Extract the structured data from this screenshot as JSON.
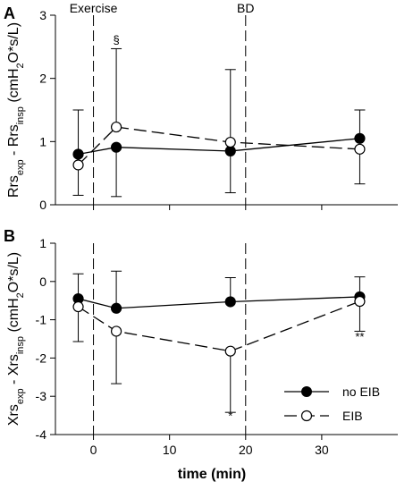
{
  "chart_data": {
    "type": "line",
    "xlabel": "time (min)",
    "xlim": [
      -5,
      40
    ],
    "xticks": [
      0,
      10,
      20,
      30
    ],
    "events": [
      {
        "x": 0,
        "label": "Exercise"
      },
      {
        "x": 20,
        "label": "BD"
      }
    ],
    "legend": {
      "placement": "bottom-right",
      "entries": [
        "no EIB",
        "EIB"
      ]
    },
    "panels": [
      {
        "letter": "A",
        "ylabel_parts": [
          {
            "t": "Rrs",
            "s": ""
          },
          {
            "t": "exp",
            "s": "sub"
          },
          {
            "t": " - Rrs",
            "s": ""
          },
          {
            "t": "insp",
            "s": "sub"
          },
          {
            "t": " (cmH",
            "s": ""
          },
          {
            "t": "2",
            "s": "sub"
          },
          {
            "t": "O*s/L)",
            "s": ""
          }
        ],
        "ylim": [
          0,
          3
        ],
        "yticks": [
          0,
          1,
          2,
          3
        ],
        "series": [
          {
            "name": "no EIB",
            "x": [
              -2,
              3,
              18,
              35
            ],
            "y": [
              0.8,
              0.91,
              0.85,
              1.05
            ],
            "err_lo": [
              0.15,
              0.13,
              0.19,
              0.62
            ],
            "err_hi": [
              1.5,
              1.5,
              1.5,
              1.5
            ],
            "err_side": [
              "hi",
              "lo",
              "lo",
              "hi"
            ]
          },
          {
            "name": "EIB",
            "x": [
              -2,
              3,
              18,
              35
            ],
            "y": [
              0.63,
              1.23,
              0.99,
              0.88
            ],
            "err_lo": [
              0.15,
              0.13,
              0.19,
              0.33
            ],
            "err_hi": [
              1.5,
              2.47,
              2.14,
              1.5
            ],
            "err_side": [
              "lo",
              "hi",
              "hi",
              "lo"
            ]
          }
        ],
        "annotations": [
          {
            "x": 3,
            "y": 2.55,
            "text": "§"
          }
        ]
      },
      {
        "letter": "B",
        "ylabel_parts": [
          {
            "t": "Xrs",
            "s": ""
          },
          {
            "t": "exp",
            "s": "sub"
          },
          {
            "t": " - Xrs",
            "s": ""
          },
          {
            "t": "insp",
            "s": "sub"
          },
          {
            "t": " (cmH",
            "s": ""
          },
          {
            "t": "2",
            "s": "sub"
          },
          {
            "t": "O*s/L)",
            "s": ""
          }
        ],
        "ylim": [
          -4,
          1
        ],
        "yticks": [
          -4,
          -3,
          -2,
          -1,
          0,
          1
        ],
        "series": [
          {
            "name": "no EIB",
            "x": [
              -2,
              3,
              18,
              35
            ],
            "y": [
              -0.45,
              -0.7,
              -0.53,
              -0.4
            ],
            "err_lo": [
              -1.57,
              -2.67,
              -3.42,
              -1.3
            ],
            "err_hi": [
              0.2,
              0.27,
              0.1,
              0.12
            ],
            "err_side": [
              "hi",
              "hi",
              "hi",
              "hi"
            ]
          },
          {
            "name": "EIB",
            "x": [
              -2,
              3,
              18,
              35
            ],
            "y": [
              -0.66,
              -1.3,
              -1.82,
              -0.52
            ],
            "err_lo": [
              -1.57,
              -2.67,
              -3.42,
              -1.3
            ],
            "err_hi": [
              0.2,
              0.27,
              0.1,
              0.12
            ],
            "err_side": [
              "lo",
              "lo",
              "lo",
              "lo"
            ]
          }
        ],
        "annotations": [
          {
            "x": 18,
            "y": -3.62,
            "text": "*"
          },
          {
            "x": 35,
            "y": -1.55,
            "text": "**"
          }
        ]
      }
    ]
  }
}
